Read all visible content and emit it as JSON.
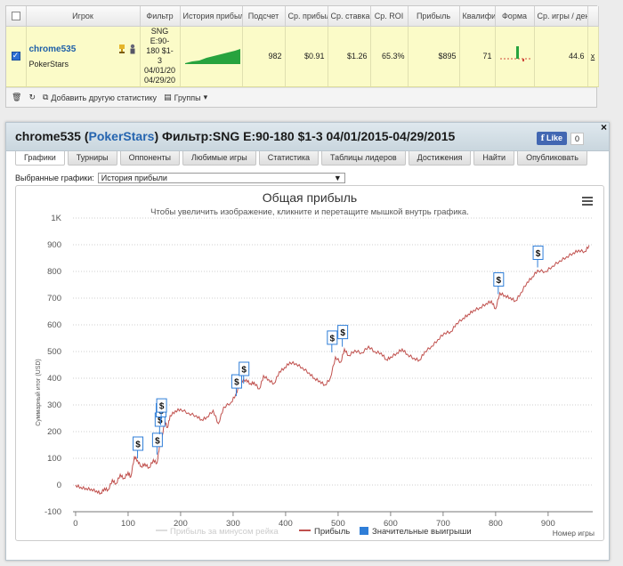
{
  "stats_table": {
    "headers": {
      "player": "Игрок",
      "filter": "Фильтр",
      "history": "История прибыли",
      "count": "Подсчет",
      "avg_profit": "Ср. прибыль",
      "avg_stake": "Ср. ставка",
      "avg_roi": "Ср. ROI",
      "profit": "Прибыль",
      "qualif": "Квалификация",
      "form": "Форма",
      "avg_games": "Ср. игры / день"
    },
    "row": {
      "player_name": "chrome535",
      "site": "PokerStars",
      "filter_lines": [
        "SNG",
        "E:90-",
        "180 $1-",
        "3",
        "04/01/20",
        "04/29/20"
      ],
      "count": "982",
      "avg_profit": "$0.91",
      "avg_stake": "$1.26",
      "avg_roi": "65.3%",
      "profit": "$895",
      "qualif": "71",
      "avg_games": "44.6",
      "remove": "x"
    },
    "toolbar": {
      "add_stat": "Добавить другую статистику",
      "groups": "Группы"
    }
  },
  "panel": {
    "player": "chrome535",
    "site": "PokerStars",
    "filter_title": "Фильтр:SNG E:90-180 $1-3 04/01/2015-04/29/2015",
    "fb_like": "Like",
    "fb_count": "0",
    "close": "×",
    "tabs": [
      "Графики",
      "Турниры",
      "Оппоненты",
      "Любимые игры",
      "Статистика",
      "Таблицы лидеров",
      "Достижения",
      "Найти",
      "Опубликовать"
    ],
    "select_label": "Выбранные графики:",
    "select_value": "История прибыли"
  },
  "chart_data": {
    "type": "line",
    "title": "Общая прибыль",
    "subtitle": "Чтобы увеличить изображение, кликните и перетащите мышкой внутрь графика.",
    "xlabel": "Номер игры",
    "ylabel": "Суммарный итог (USD)",
    "x_ticks": [
      "0",
      "100",
      "200",
      "300",
      "400",
      "500",
      "600",
      "700",
      "800",
      "900"
    ],
    "y_ticks": [
      "-100",
      "0",
      "100",
      "200",
      "300",
      "400",
      "500",
      "600",
      "700",
      "800",
      "900",
      "1K"
    ],
    "xlim": [
      -5,
      985
    ],
    "ylim": [
      -100,
      1000
    ],
    "series": [
      {
        "name": "Прибыль",
        "color": "#c0504d",
        "points": [
          [
            0,
            0
          ],
          [
            10,
            -8
          ],
          [
            20,
            -12
          ],
          [
            30,
            -15
          ],
          [
            40,
            -22
          ],
          [
            48,
            -30
          ],
          [
            55,
            -12
          ],
          [
            62,
            -18
          ],
          [
            70,
            20
          ],
          [
            77,
            5
          ],
          [
            85,
            40
          ],
          [
            92,
            25
          ],
          [
            100,
            48
          ],
          [
            105,
            30
          ],
          [
            112,
            108
          ],
          [
            118,
            92
          ],
          [
            125,
            70
          ],
          [
            132,
            80
          ],
          [
            140,
            65
          ],
          [
            148,
            95
          ],
          [
            155,
            82
          ],
          [
            160,
            150
          ],
          [
            165,
            185
          ],
          [
            170,
            240
          ],
          [
            175,
            215
          ],
          [
            180,
            260
          ],
          [
            190,
            278
          ],
          [
            200,
            285
          ],
          [
            215,
            270
          ],
          [
            230,
            260
          ],
          [
            240,
            245
          ],
          [
            250,
            255
          ],
          [
            262,
            280
          ],
          [
            272,
            230
          ],
          [
            282,
            292
          ],
          [
            296,
            310
          ],
          [
            305,
            340
          ],
          [
            315,
            390
          ],
          [
            325,
            395
          ],
          [
            333,
            380
          ],
          [
            340,
            385
          ],
          [
            350,
            360
          ],
          [
            358,
            410
          ],
          [
            368,
            395
          ],
          [
            378,
            380
          ],
          [
            388,
            425
          ],
          [
            398,
            440
          ],
          [
            408,
            460
          ],
          [
            420,
            455
          ],
          [
            432,
            440
          ],
          [
            445,
            420
          ],
          [
            455,
            400
          ],
          [
            465,
            390
          ],
          [
            475,
            375
          ],
          [
            485,
            400
          ],
          [
            495,
            480
          ],
          [
            505,
            460
          ],
          [
            512,
            510
          ],
          [
            520,
            485
          ],
          [
            532,
            505
          ],
          [
            545,
            495
          ],
          [
            558,
            520
          ],
          [
            570,
            500
          ],
          [
            582,
            495
          ],
          [
            592,
            470
          ],
          [
            600,
            480
          ],
          [
            612,
            495
          ],
          [
            622,
            510
          ],
          [
            632,
            490
          ],
          [
            645,
            475
          ],
          [
            655,
            468
          ],
          [
            665,
            500
          ],
          [
            678,
            520
          ],
          [
            690,
            545
          ],
          [
            702,
            570
          ],
          [
            715,
            575
          ],
          [
            725,
            605
          ],
          [
            738,
            625
          ],
          [
            748,
            640
          ],
          [
            758,
            655
          ],
          [
            770,
            665
          ],
          [
            782,
            680
          ],
          [
            792,
            690
          ],
          [
            800,
            660
          ],
          [
            808,
            720
          ],
          [
            818,
            710
          ],
          [
            828,
            702
          ],
          [
            838,
            690
          ],
          [
            848,
            720
          ],
          [
            860,
            760
          ],
          [
            870,
            780
          ],
          [
            880,
            805
          ],
          [
            895,
            800
          ],
          [
            908,
            820
          ],
          [
            922,
            840
          ],
          [
            935,
            855
          ],
          [
            948,
            870
          ],
          [
            958,
            880
          ],
          [
            970,
            875
          ],
          [
            978,
            898
          ]
        ]
      },
      {
        "name": "Прибыль за минусом рейка",
        "color": "#dddddd",
        "points": []
      },
      {
        "name": "Значительные выигрыши",
        "color": "#2f7ed8",
        "points": []
      }
    ],
    "big_wins": [
      [
        118,
        100
      ],
      [
        155,
        114
      ],
      [
        160,
        190
      ],
      [
        162,
        225
      ],
      [
        163,
        243
      ],
      [
        306,
        333
      ],
      [
        320,
        380
      ],
      [
        488,
        497
      ],
      [
        508,
        518
      ],
      [
        805,
        715
      ],
      [
        880,
        815
      ]
    ],
    "big_win_symbol": "$"
  }
}
